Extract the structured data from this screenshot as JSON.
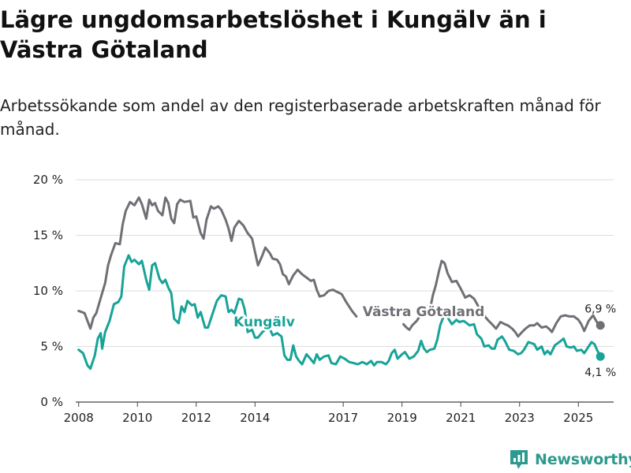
{
  "title": "Lägre ungdomsarbetslöshet i Kungälv än i Västra Götaland",
  "subtitle": "Arbetssökande som andel av den registerbaserade arbetskraften månad för månad.",
  "brand": "Newsworthy",
  "brand_icon": "bar-chart-logo-icon",
  "colors": {
    "kungalv": "#17a398",
    "vastra": "#6f6f75",
    "grid": "#dddddd",
    "brand": "#2e9a8f"
  },
  "chart_data": {
    "type": "line",
    "title": "Lägre ungdomsarbetslöshet i Kungälv än i Västra Götaland",
    "xlabel": "",
    "ylabel": "",
    "xlim": [
      2007.9,
      2026.2
    ],
    "ylim": [
      0,
      20
    ],
    "grid": true,
    "y_ticks": [
      0,
      5,
      10,
      15,
      20
    ],
    "y_tick_labels": [
      "0 %",
      "5 %",
      "10 %",
      "15 %",
      "20 %"
    ],
    "x_ticks": [
      2008,
      2010,
      2012,
      2014,
      2017,
      2019,
      2021,
      2023,
      2025
    ],
    "x_tick_labels": [
      "2008",
      "2010",
      "2012",
      "2014",
      "2017",
      "2019",
      "2021",
      "2023",
      "2025"
    ],
    "series": [
      {
        "name": "Västra Götaland",
        "label": "Västra Götaland",
        "end_label": "6,9 %",
        "end_value": 6.9,
        "points": [
          [
            2008.0,
            8.2
          ],
          [
            2008.2,
            8.0
          ],
          [
            2008.4,
            6.6
          ],
          [
            2008.5,
            7.6
          ],
          [
            2008.6,
            8.0
          ],
          [
            2008.8,
            9.8
          ],
          [
            2008.9,
            10.7
          ],
          [
            2009.0,
            12.3
          ],
          [
            2009.1,
            13.2
          ],
          [
            2009.25,
            14.3
          ],
          [
            2009.4,
            14.2
          ],
          [
            2009.5,
            16.0
          ],
          [
            2009.6,
            17.2
          ],
          [
            2009.75,
            18.0
          ],
          [
            2009.9,
            17.7
          ],
          [
            2010.05,
            18.4
          ],
          [
            2010.15,
            17.8
          ],
          [
            2010.3,
            16.5
          ],
          [
            2010.4,
            18.2
          ],
          [
            2010.5,
            17.7
          ],
          [
            2010.6,
            17.9
          ],
          [
            2010.7,
            17.2
          ],
          [
            2010.85,
            16.8
          ],
          [
            2010.95,
            18.4
          ],
          [
            2011.05,
            17.9
          ],
          [
            2011.15,
            16.5
          ],
          [
            2011.25,
            16.1
          ],
          [
            2011.35,
            17.8
          ],
          [
            2011.45,
            18.2
          ],
          [
            2011.6,
            18.0
          ],
          [
            2011.8,
            18.1
          ],
          [
            2011.9,
            16.6
          ],
          [
            2012.0,
            16.7
          ],
          [
            2012.15,
            15.2
          ],
          [
            2012.25,
            14.7
          ],
          [
            2012.35,
            16.4
          ],
          [
            2012.5,
            17.6
          ],
          [
            2012.6,
            17.4
          ],
          [
            2012.75,
            17.6
          ],
          [
            2012.85,
            17.3
          ],
          [
            2013.0,
            16.4
          ],
          [
            2013.1,
            15.6
          ],
          [
            2013.2,
            14.5
          ],
          [
            2013.3,
            15.7
          ],
          [
            2013.45,
            16.3
          ],
          [
            2013.6,
            15.9
          ],
          [
            2013.75,
            15.2
          ],
          [
            2013.9,
            14.7
          ],
          [
            2014.0,
            13.5
          ],
          [
            2014.1,
            12.3
          ],
          [
            2014.25,
            13.2
          ],
          [
            2014.35,
            13.9
          ],
          [
            2014.5,
            13.4
          ],
          [
            2014.6,
            12.9
          ],
          [
            2014.75,
            12.8
          ],
          [
            2014.85,
            12.4
          ],
          [
            2014.95,
            11.5
          ],
          [
            2015.05,
            11.3
          ],
          [
            2015.15,
            10.6
          ],
          [
            2015.3,
            11.4
          ],
          [
            2015.45,
            11.9
          ],
          [
            2015.6,
            11.5
          ],
          [
            2015.75,
            11.2
          ],
          [
            2015.9,
            10.9
          ],
          [
            2016.0,
            11.0
          ],
          [
            2016.1,
            10.1
          ],
          [
            2016.2,
            9.5
          ],
          [
            2016.35,
            9.6
          ],
          [
            2016.5,
            10.0
          ],
          [
            2016.65,
            10.1
          ],
          [
            2016.8,
            9.9
          ],
          [
            2016.95,
            9.7
          ],
          [
            2017.1,
            9.0
          ],
          [
            2017.3,
            8.2
          ],
          [
            2017.45,
            7.7
          ]
        ]
      },
      {
        "name": "Västra Götaland (cont.)",
        "label": "",
        "points": [
          [
            2019.05,
            7.0
          ],
          [
            2019.15,
            6.7
          ],
          [
            2019.25,
            6.5
          ],
          [
            2019.35,
            6.9
          ],
          [
            2019.5,
            7.3
          ],
          [
            2019.7,
            8.1
          ],
          [
            2019.85,
            8.6
          ],
          [
            2019.95,
            8.3
          ],
          [
            2020.05,
            9.6
          ],
          [
            2020.15,
            10.5
          ],
          [
            2020.25,
            11.7
          ],
          [
            2020.35,
            12.7
          ],
          [
            2020.45,
            12.5
          ],
          [
            2020.55,
            11.6
          ],
          [
            2020.7,
            10.8
          ],
          [
            2020.85,
            10.9
          ],
          [
            2021.0,
            10.2
          ],
          [
            2021.15,
            9.4
          ],
          [
            2021.3,
            9.6
          ],
          [
            2021.45,
            9.3
          ],
          [
            2021.6,
            8.6
          ],
          [
            2021.75,
            8.0
          ],
          [
            2021.85,
            7.6
          ],
          [
            2021.95,
            7.3
          ],
          [
            2022.1,
            6.9
          ],
          [
            2022.2,
            6.6
          ],
          [
            2022.35,
            7.2
          ],
          [
            2022.5,
            7.0
          ],
          [
            2022.6,
            6.9
          ],
          [
            2022.75,
            6.6
          ],
          [
            2022.85,
            6.3
          ],
          [
            2022.95,
            5.9
          ],
          [
            2023.05,
            6.2
          ],
          [
            2023.2,
            6.6
          ],
          [
            2023.35,
            6.9
          ],
          [
            2023.5,
            6.9
          ],
          [
            2023.6,
            7.1
          ],
          [
            2023.75,
            6.7
          ],
          [
            2023.9,
            6.8
          ],
          [
            2024.0,
            6.6
          ],
          [
            2024.1,
            6.3
          ],
          [
            2024.25,
            7.1
          ],
          [
            2024.4,
            7.7
          ],
          [
            2024.55,
            7.8
          ],
          [
            2024.7,
            7.7
          ],
          [
            2024.85,
            7.7
          ],
          [
            2025.0,
            7.4
          ],
          [
            2025.1,
            7.0
          ],
          [
            2025.2,
            6.4
          ],
          [
            2025.35,
            7.3
          ],
          [
            2025.5,
            7.8
          ],
          [
            2025.65,
            7.1
          ],
          [
            2025.75,
            6.9
          ]
        ]
      },
      {
        "name": "Kungälv",
        "label": "Kungälv",
        "end_label": "4,1 %",
        "end_value": 4.1,
        "points": [
          [
            2008.0,
            4.7
          ],
          [
            2008.15,
            4.4
          ],
          [
            2008.3,
            3.3
          ],
          [
            2008.4,
            3.0
          ],
          [
            2008.55,
            4.2
          ],
          [
            2008.65,
            5.7
          ],
          [
            2008.75,
            6.2
          ],
          [
            2008.8,
            4.8
          ],
          [
            2008.9,
            6.3
          ],
          [
            2009.05,
            7.3
          ],
          [
            2009.2,
            8.8
          ],
          [
            2009.35,
            9.0
          ],
          [
            2009.45,
            9.5
          ],
          [
            2009.55,
            12.2
          ],
          [
            2009.7,
            13.2
          ],
          [
            2009.8,
            12.6
          ],
          [
            2009.9,
            12.8
          ],
          [
            2010.05,
            12.4
          ],
          [
            2010.15,
            12.7
          ],
          [
            2010.3,
            11.0
          ],
          [
            2010.4,
            10.1
          ],
          [
            2010.5,
            12.3
          ],
          [
            2010.6,
            12.5
          ],
          [
            2010.75,
            11.1
          ],
          [
            2010.85,
            10.7
          ],
          [
            2010.95,
            11.0
          ],
          [
            2011.05,
            10.3
          ],
          [
            2011.15,
            9.8
          ],
          [
            2011.25,
            7.5
          ],
          [
            2011.4,
            7.1
          ],
          [
            2011.5,
            8.6
          ],
          [
            2011.6,
            8.1
          ],
          [
            2011.7,
            9.1
          ],
          [
            2011.85,
            8.7
          ],
          [
            2011.95,
            8.8
          ],
          [
            2012.05,
            7.6
          ],
          [
            2012.15,
            8.1
          ],
          [
            2012.3,
            6.7
          ],
          [
            2012.4,
            6.7
          ],
          [
            2012.55,
            7.9
          ],
          [
            2012.7,
            9.1
          ],
          [
            2012.85,
            9.6
          ],
          [
            2013.0,
            9.5
          ],
          [
            2013.1,
            8.1
          ],
          [
            2013.2,
            8.3
          ],
          [
            2013.3,
            8.0
          ],
          [
            2013.45,
            9.3
          ],
          [
            2013.55,
            9.2
          ],
          [
            2013.65,
            8.3
          ],
          [
            2013.75,
            6.3
          ],
          [
            2013.9,
            6.5
          ],
          [
            2014.0,
            5.8
          ],
          [
            2014.1,
            5.8
          ],
          [
            2014.25,
            6.3
          ],
          [
            2014.4,
            6.6
          ],
          [
            2014.5,
            6.6
          ],
          [
            2014.6,
            6.0
          ],
          [
            2014.75,
            6.2
          ],
          [
            2014.9,
            5.9
          ],
          [
            2015.0,
            4.2
          ],
          [
            2015.1,
            3.8
          ],
          [
            2015.2,
            3.8
          ],
          [
            2015.3,
            5.1
          ],
          [
            2015.4,
            4.1
          ],
          [
            2015.5,
            3.7
          ],
          [
            2015.6,
            3.4
          ],
          [
            2015.75,
            4.3
          ],
          [
            2015.85,
            4.0
          ],
          [
            2016.0,
            3.5
          ],
          [
            2016.1,
            4.3
          ],
          [
            2016.2,
            3.8
          ],
          [
            2016.35,
            4.1
          ],
          [
            2016.5,
            4.2
          ],
          [
            2016.6,
            3.5
          ],
          [
            2016.75,
            3.4
          ],
          [
            2016.9,
            4.1
          ],
          [
            2017.05,
            3.9
          ],
          [
            2017.2,
            3.6
          ],
          [
            2017.35,
            3.5
          ],
          [
            2017.5,
            3.4
          ],
          [
            2017.65,
            3.6
          ],
          [
            2017.8,
            3.4
          ],
          [
            2017.95,
            3.7
          ],
          [
            2018.05,
            3.3
          ],
          [
            2018.15,
            3.6
          ],
          [
            2018.3,
            3.6
          ],
          [
            2018.45,
            3.4
          ],
          [
            2018.55,
            3.7
          ],
          [
            2018.65,
            4.4
          ],
          [
            2018.75,
            4.7
          ],
          [
            2018.85,
            3.9
          ],
          [
            2019.0,
            4.3
          ],
          [
            2019.1,
            4.5
          ],
          [
            2019.25,
            3.9
          ],
          [
            2019.4,
            4.1
          ],
          [
            2019.55,
            4.6
          ],
          [
            2019.65,
            5.5
          ],
          [
            2019.75,
            4.8
          ],
          [
            2019.85,
            4.5
          ],
          [
            2019.95,
            4.7
          ],
          [
            2020.1,
            4.8
          ],
          [
            2020.2,
            5.6
          ],
          [
            2020.3,
            6.9
          ],
          [
            2020.4,
            7.6
          ],
          [
            2020.5,
            8.0
          ],
          [
            2020.6,
            7.4
          ],
          [
            2020.7,
            7.0
          ],
          [
            2020.85,
            7.4
          ],
          [
            2020.95,
            7.2
          ],
          [
            2021.1,
            7.3
          ],
          [
            2021.2,
            7.1
          ],
          [
            2021.3,
            6.9
          ],
          [
            2021.45,
            7.0
          ],
          [
            2021.55,
            6.1
          ],
          [
            2021.7,
            5.7
          ],
          [
            2021.8,
            5.0
          ],
          [
            2021.95,
            5.1
          ],
          [
            2022.05,
            4.8
          ],
          [
            2022.15,
            4.8
          ],
          [
            2022.25,
            5.6
          ],
          [
            2022.4,
            5.9
          ],
          [
            2022.5,
            5.5
          ],
          [
            2022.65,
            4.7
          ],
          [
            2022.8,
            4.6
          ],
          [
            2022.95,
            4.3
          ],
          [
            2023.05,
            4.4
          ],
          [
            2023.15,
            4.7
          ],
          [
            2023.3,
            5.4
          ],
          [
            2023.4,
            5.3
          ],
          [
            2023.5,
            5.2
          ],
          [
            2023.6,
            4.7
          ],
          [
            2023.75,
            5.0
          ],
          [
            2023.85,
            4.3
          ],
          [
            2023.95,
            4.6
          ],
          [
            2024.05,
            4.3
          ],
          [
            2024.2,
            5.1
          ],
          [
            2024.35,
            5.4
          ],
          [
            2024.5,
            5.7
          ],
          [
            2024.6,
            5.0
          ],
          [
            2024.75,
            4.9
          ],
          [
            2024.85,
            5.0
          ],
          [
            2024.95,
            4.6
          ],
          [
            2025.1,
            4.7
          ],
          [
            2025.2,
            4.4
          ],
          [
            2025.35,
            5.0
          ],
          [
            2025.45,
            5.4
          ],
          [
            2025.55,
            5.2
          ],
          [
            2025.65,
            4.6
          ],
          [
            2025.75,
            4.1
          ]
        ]
      }
    ]
  }
}
